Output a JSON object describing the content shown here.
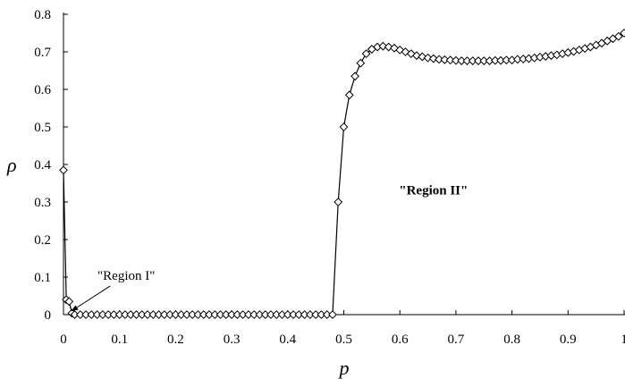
{
  "chart_data": {
    "type": "line",
    "title": "",
    "xlabel": "p",
    "ylabel": "ρ",
    "xlim": [
      0,
      1
    ],
    "ylim": [
      0,
      0.8
    ],
    "grid": false,
    "x_ticks": [
      "0",
      "0.1",
      "0.2",
      "0.3",
      "0.4",
      "0.5",
      "0.6",
      "0.7",
      "0.8",
      "0.9",
      "1"
    ],
    "y_ticks": [
      "0",
      "0.1",
      "0.2",
      "0.3",
      "0.4",
      "0.5",
      "0.6",
      "0.7",
      "0.8"
    ],
    "marker": "diamond",
    "annotations": [
      {
        "text": "\"Region I\"",
        "at": [
          0.01,
          0.003
        ],
        "label_pos": [
          0.112,
          0.105
        ],
        "arrow": true
      },
      {
        "text": "\"Region II\"",
        "at": [
          0.66,
          0.32
        ],
        "arrow": false
      }
    ],
    "series": [
      {
        "x": [
          0,
          0.005,
          0.01,
          0.015,
          0.02,
          0.03,
          0.04,
          0.05,
          0.06,
          0.07,
          0.08,
          0.09,
          0.1,
          0.11,
          0.12,
          0.13,
          0.14,
          0.15,
          0.16,
          0.17,
          0.18,
          0.19,
          0.2,
          0.21,
          0.22,
          0.23,
          0.24,
          0.25,
          0.26,
          0.27,
          0.28,
          0.29,
          0.3,
          0.31,
          0.32,
          0.33,
          0.34,
          0.35,
          0.36,
          0.37,
          0.38,
          0.39,
          0.4,
          0.41,
          0.42,
          0.43,
          0.44,
          0.45,
          0.46,
          0.47,
          0.48,
          0.49,
          0.5,
          0.51,
          0.52,
          0.53,
          0.54,
          0.55,
          0.56,
          0.57,
          0.58,
          0.59,
          0.6,
          0.61,
          0.62,
          0.63,
          0.64,
          0.65,
          0.66,
          0.67,
          0.68,
          0.69,
          0.7,
          0.71,
          0.72,
          0.73,
          0.74,
          0.75,
          0.76,
          0.77,
          0.78,
          0.79,
          0.8,
          0.81,
          0.82,
          0.83,
          0.84,
          0.85,
          0.86,
          0.87,
          0.88,
          0.89,
          0.9,
          0.91,
          0.92,
          0.93,
          0.94,
          0.95,
          0.96,
          0.97,
          0.98,
          0.99,
          1.0
        ],
        "y": [
          0.385,
          0.04,
          0.035,
          0.004,
          0,
          0,
          0,
          0,
          0,
          0,
          0,
          0,
          0,
          0,
          0,
          0,
          0,
          0,
          0,
          0,
          0,
          0,
          0,
          0,
          0,
          0,
          0,
          0,
          0,
          0,
          0,
          0,
          0,
          0,
          0,
          0,
          0,
          0,
          0,
          0,
          0,
          0,
          0,
          0,
          0,
          0,
          0,
          0,
          0,
          0,
          0,
          0.3,
          0.5,
          0.585,
          0.635,
          0.67,
          0.695,
          0.707,
          0.713,
          0.715,
          0.713,
          0.71,
          0.705,
          0.7,
          0.695,
          0.69,
          0.687,
          0.684,
          0.682,
          0.68,
          0.679,
          0.678,
          0.677,
          0.676,
          0.676,
          0.676,
          0.676,
          0.676,
          0.676,
          0.677,
          0.677,
          0.678,
          0.678,
          0.68,
          0.681,
          0.682,
          0.684,
          0.686,
          0.688,
          0.69,
          0.692,
          0.695,
          0.698,
          0.701,
          0.705,
          0.709,
          0.713,
          0.718,
          0.723,
          0.729,
          0.735,
          0.741,
          0.75
        ]
      }
    ]
  }
}
